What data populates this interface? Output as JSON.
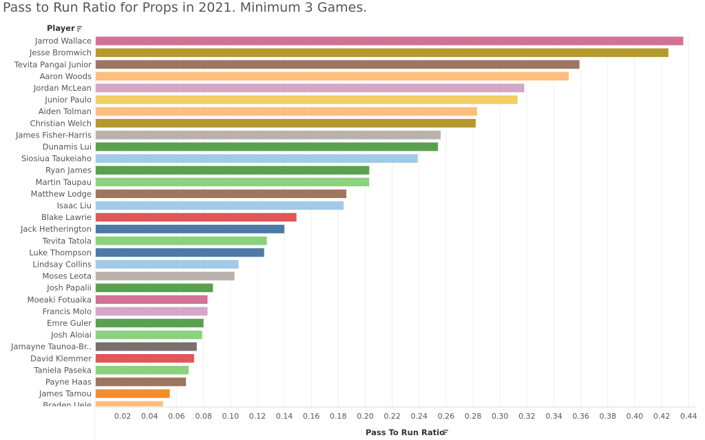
{
  "page": {
    "title": "Pass to Run Ratio for Props in 2021. Minimum 3 Games."
  },
  "chart_data": {
    "type": "bar",
    "orientation": "horizontal",
    "title": "Pass to Run Ratio for Props in 2021. Minimum 3 Games.",
    "row_header": "Player",
    "xlabel": "Pass To Run Ratio",
    "xlim": [
      0,
      0.445
    ],
    "x_ticks": [
      "0.02",
      "0.04",
      "0.06",
      "0.08",
      "0.10",
      "0.12",
      "0.14",
      "0.16",
      "0.18",
      "0.20",
      "0.22",
      "0.24",
      "0.26",
      "0.28",
      "0.30",
      "0.32",
      "0.34",
      "0.36",
      "0.38",
      "0.40",
      "0.42",
      "0.44"
    ],
    "gridlines": true,
    "categories": [
      "Jarrod Wallace",
      "Jesse Bromwich",
      "Tevita Pangai Junior",
      "Aaron Woods",
      "Jordan McLean",
      "Junior Paulo",
      "Aiden Tolman",
      "Christian Welch",
      "James Fisher-Harris",
      "Dunamis Lui",
      "Siosiua Taukeiaho",
      "Ryan James",
      "Martin Taupau",
      "Matthew Lodge",
      "Isaac Liu",
      "Blake Lawrie",
      "Jack Hetherington",
      "Tevita Tatola",
      "Luke Thompson",
      "Lindsay Collins",
      "Moses Leota",
      "Josh Papalii",
      "Moeaki Fotuaika",
      "Francis Molo",
      "Emre Guler",
      "Josh Aloiai",
      "Jamayne Taunoa-Br..",
      "David Klemmer",
      "Taniela Paseka",
      "Payne Haas",
      "James Tamou",
      "Braden Uele"
    ],
    "values": [
      0.436,
      0.425,
      0.359,
      0.351,
      0.318,
      0.313,
      0.283,
      0.282,
      0.256,
      0.254,
      0.239,
      0.203,
      0.203,
      0.186,
      0.184,
      0.149,
      0.14,
      0.127,
      0.125,
      0.106,
      0.103,
      0.087,
      0.083,
      0.083,
      0.08,
      0.079,
      0.075,
      0.073,
      0.069,
      0.067,
      0.055,
      0.05
    ],
    "colors": [
      "#d37295",
      "#b6992d",
      "#9d7660",
      "#ffbe7d",
      "#d4a6c8",
      "#f1ce63",
      "#ffbe7d",
      "#b6992d",
      "#bab0ac",
      "#59a14f",
      "#a0cbe8",
      "#59a14f",
      "#8cd17d",
      "#9d7660",
      "#a0cbe8",
      "#e15759",
      "#4e79a7",
      "#8cd17d",
      "#4e79a7",
      "#a0cbe8",
      "#bab0ac",
      "#59a14f",
      "#d37295",
      "#d4a6c8",
      "#59a14f",
      "#8cd17d",
      "#79706e",
      "#e15759",
      "#8cd17d",
      "#9d7660",
      "#f28e2b",
      "#ffbe7d"
    ]
  }
}
